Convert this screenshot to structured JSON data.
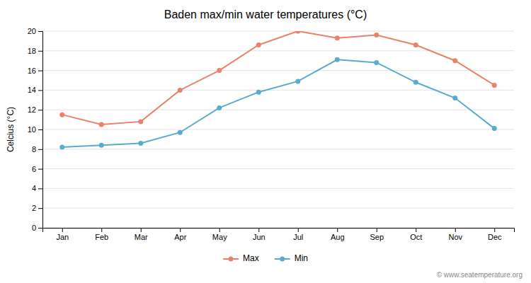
{
  "chart_data": {
    "type": "line",
    "title": "Baden max/min water temperatures (°C)",
    "ylabel": "Celcius (°C)",
    "categories": [
      "Jan",
      "Feb",
      "Mar",
      "Apr",
      "May",
      "Jun",
      "Jul",
      "Aug",
      "Sep",
      "Oct",
      "Nov",
      "Dec"
    ],
    "series": [
      {
        "name": "Max",
        "color": "#e8826a",
        "marker": "circle",
        "line_style": "solid",
        "values": [
          11.5,
          10.5,
          10.8,
          14.0,
          16.0,
          18.6,
          20.0,
          19.3,
          19.6,
          18.6,
          17.0,
          14.5
        ]
      },
      {
        "name": "Min",
        "color": "#5aabcf",
        "marker": "circle",
        "line_style": "solid",
        "values": [
          8.2,
          8.4,
          8.6,
          9.7,
          12.2,
          13.8,
          14.9,
          17.1,
          16.8,
          14.8,
          13.2,
          10.1
        ]
      }
    ],
    "ylim": [
      0,
      20
    ],
    "yticks": [
      0,
      2,
      4,
      6,
      8,
      10,
      12,
      14,
      16,
      18,
      20
    ],
    "grid": true,
    "legend": "bottom",
    "annotations": [
      "© www.seatemperature.org"
    ]
  }
}
